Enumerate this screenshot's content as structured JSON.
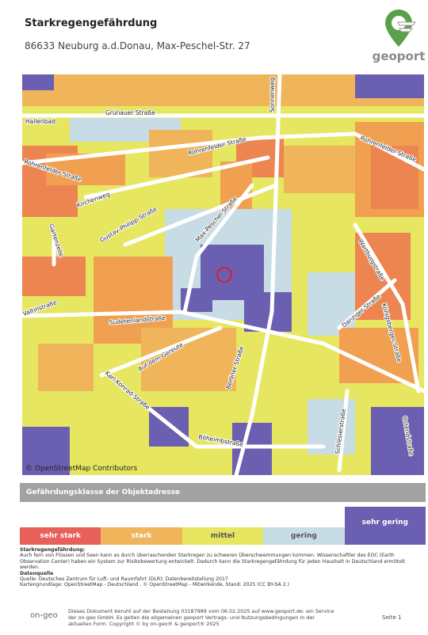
{
  "header": {
    "title": "Starkregengefährdung",
    "address": "86633 Neuburg a.d.Donau, Max-Peschel-Str. 27",
    "logo": "geoport"
  },
  "map": {
    "attribution": "© OpenStreetMap Contributors",
    "labels": [
      "Grünauer Straße",
      "Sonnenweg",
      "Hallenbad",
      "Rohrenfelder Straße",
      "Rohrenfelder Straße",
      "Rohrenfelder Straße",
      "Kirchenweg",
      "Gustav-Philipp-Straße",
      "Max-Peschel-Straße",
      "Gartenzelle",
      "Valtinstraße",
      "Sudetenlandstraße",
      "Auf dem Gereute",
      "Karl-Konrad-Straße",
      "Berliner Straße",
      "Böheimbstraße",
      "Wartburgstraße",
      "Danziger Straße",
      "Königsberger Straße",
      "Schlesierstraße",
      "Ostendstraße"
    ]
  },
  "legend": {
    "title": "Gefährdungsklasse der Objektadresse",
    "classes": [
      {
        "label": "sehr stark",
        "color": "#e8605a"
      },
      {
        "label": "stark",
        "color": "#f0b45a"
      },
      {
        "label": "mittel",
        "color": "#e6e660"
      },
      {
        "label": "gering",
        "color": "#c8dce6"
      },
      {
        "label": "sehr gering",
        "color": "#6a5fb0",
        "selected": true
      }
    ]
  },
  "notes": {
    "heading": "Starkregengefährdung:",
    "text": "Auch fern von Flüssen und Seen kann es durch überraschenden Starkregen zu schweren Überschwemmungen kommen. Wissenschaftler des EOC (Earth Observation Center) haben ein System zur Risikobewertung entwickelt. Dadurch kann die Starkregengefährdung für jeden Haushalt in Deutschland ermittelt werden.",
    "source_heading": "Datenquelle",
    "source": "Quelle: Deutsches Zentrum für Luft- und Raumfahrt (DLR); Datenbereitstellung 2017",
    "basemap": "Kartengrundlage: OpenStreetMap - Deutschland , © OpenStreetMap - Mitwirkende, Stand: 2025 (CC BY-SA 2.)"
  },
  "footer": {
    "logo": "on-geo",
    "text": "Dieses Dokument beruht auf der Bestellung 03187989 vom 06.02.2025 auf www.geoport.de: ein Service der on-geo GmbH. Es gelten die allgemeinen geoport Vertrags- und Nutzungsbedingungen in der aktuellen Form. Copyright © by on-geo® & geoport® 2025",
    "page": "Seite 1"
  }
}
